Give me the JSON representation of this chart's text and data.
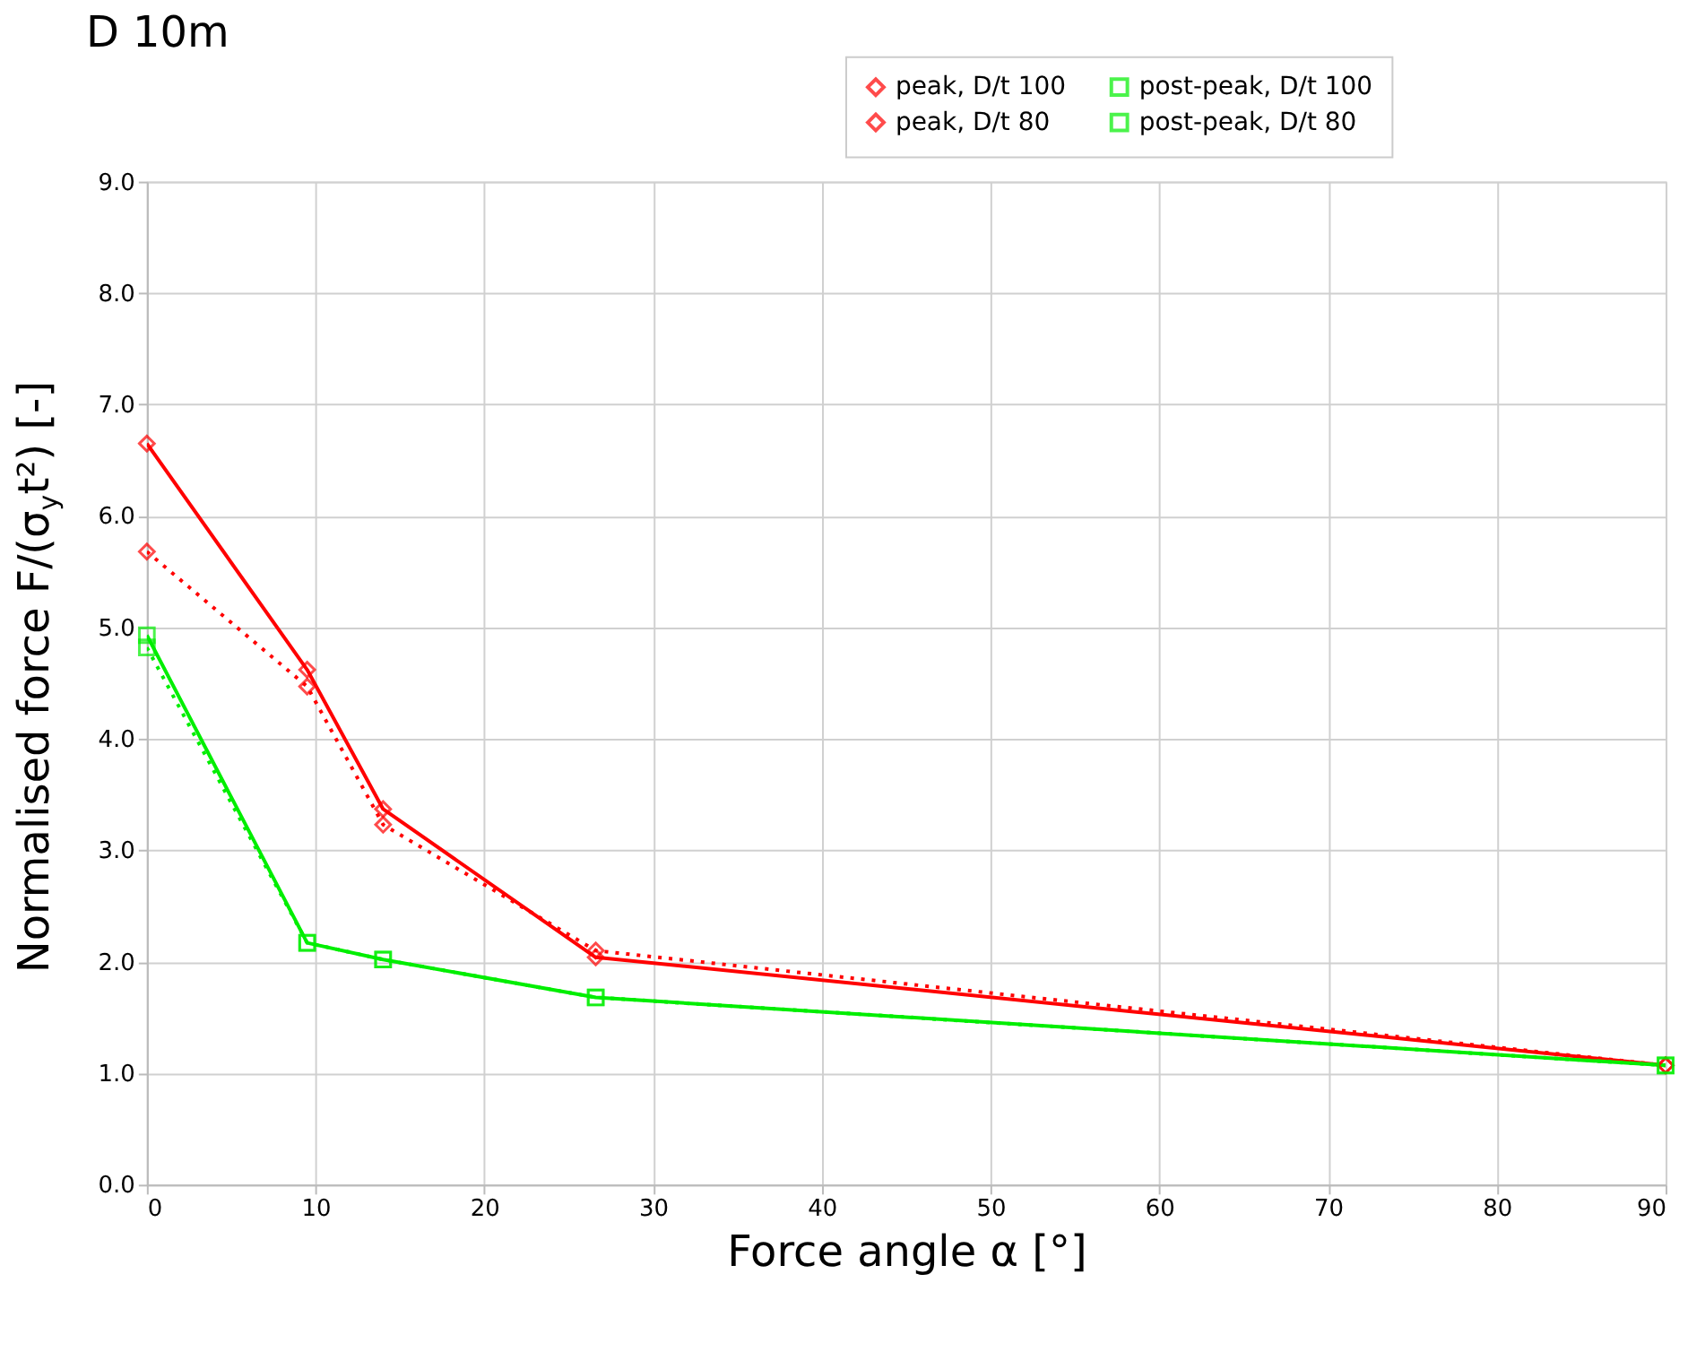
{
  "chart_data": {
    "type": "line",
    "title": "D 10m",
    "xlabel": "Force angle   α   [°]",
    "ylabel": "Normalised force   F/(σ$_{y}$t²)   [-]",
    "x": [
      0,
      9.5,
      14,
      26.6,
      90
    ],
    "series": [
      {
        "name": "peak, D/t 100",
        "color": "#ff0000",
        "marker": "diamond",
        "line_style": "solid",
        "values": [
          6.65,
          4.62,
          3.37,
          2.04,
          1.07
        ]
      },
      {
        "name": "peak, D/t 80",
        "color": "#ff0000",
        "marker": "diamond",
        "line_style": "dotted",
        "values": [
          5.68,
          4.47,
          3.23,
          2.1,
          1.07
        ]
      },
      {
        "name": "post-peak, D/t 100",
        "color": "#00ee00",
        "marker": "square",
        "line_style": "solid",
        "values": [
          4.93,
          2.17,
          2.02,
          1.68,
          1.07
        ]
      },
      {
        "name": "post-peak, D/t 80",
        "color": "#00ee00",
        "marker": "square",
        "line_style": "dotted",
        "values": [
          4.82,
          2.17,
          2.02,
          1.68,
          1.07
        ]
      }
    ],
    "xlim": [
      0,
      90
    ],
    "xticks": [
      0,
      10,
      20,
      30,
      40,
      50,
      60,
      70,
      80,
      90
    ],
    "ylim": [
      0,
      9
    ],
    "yticks": [
      {
        "value": 0,
        "label": "0.0"
      },
      {
        "value": 1,
        "label": "1.0"
      },
      {
        "value": 2,
        "label": "2.0"
      },
      {
        "value": 3,
        "label": "3.0"
      },
      {
        "value": 4,
        "label": "4.0"
      },
      {
        "value": 5,
        "label": "5.0"
      },
      {
        "value": 6,
        "label": "6.0"
      },
      {
        "value": 7,
        "label": "7.0"
      },
      {
        "value": 8,
        "label": "8.0"
      },
      {
        "value": 9,
        "label": "9.0"
      }
    ],
    "grid": true,
    "legend": "top right"
  }
}
